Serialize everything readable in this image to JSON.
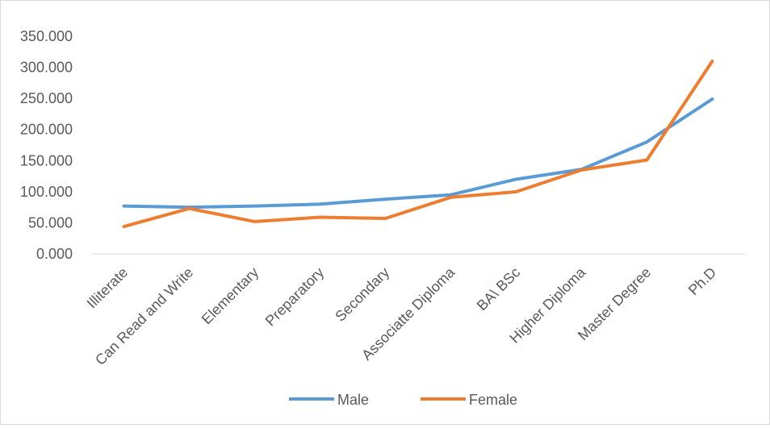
{
  "chart_data": {
    "type": "line",
    "title": "",
    "xlabel": "",
    "ylabel": "",
    "categories": [
      "Illiterate",
      "Can Read and Write",
      "Elementary",
      "Preparatory",
      "Secondary",
      "Associatte Diploma",
      "BA\\ BSc",
      "Higher Diploma",
      "Master Degree",
      "Ph.D"
    ],
    "series": [
      {
        "name": "Male",
        "color": "#5B9BD5",
        "values": [
          77,
          75,
          77,
          80,
          88,
          95,
          120,
          136,
          180,
          249
        ]
      },
      {
        "name": "Female",
        "color": "#ED7D31",
        "values": [
          44,
          73,
          52,
          59,
          57,
          91,
          100,
          135,
          151,
          310
        ]
      }
    ],
    "ylim": [
      0,
      350
    ],
    "ytick_step": 50,
    "ytick_labels": [
      "0.000",
      "50.000",
      "100.000",
      "150.000",
      "200.000",
      "250.000",
      "300.000",
      "350.000"
    ],
    "grid": false,
    "legend": "bottom"
  }
}
